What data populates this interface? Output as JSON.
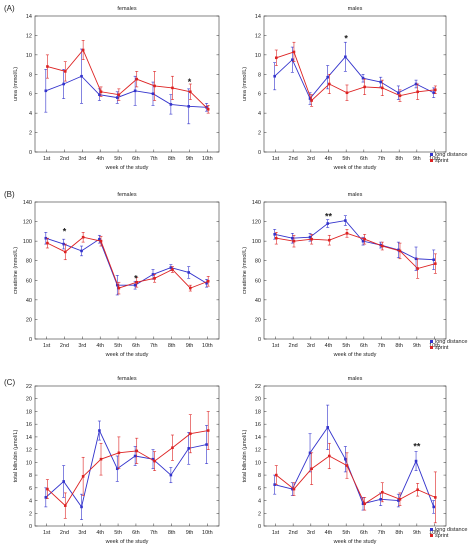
{
  "colors": {
    "long_distance": "#3333cc",
    "sprint": "#dd2222",
    "axis": "#333333"
  },
  "legend": {
    "long_distance": "long distance",
    "sprint": "sprint"
  },
  "chart_data": [
    {
      "panel": "(A)",
      "title": "females",
      "type": "line",
      "xlabel": "week of the study",
      "ylabel": "urea (mmol/L)",
      "ylim": [
        0,
        14
      ],
      "yticks": [
        0,
        2,
        4,
        6,
        8,
        10,
        12,
        14
      ],
      "categories": [
        "1st",
        "2nd",
        "3rd",
        "4th",
        "5th",
        "6th",
        "7th",
        "8th",
        "9th",
        "10th"
      ],
      "series": [
        {
          "name": "long distance",
          "values": [
            6.3,
            7.0,
            7.8,
            5.9,
            5.6,
            6.3,
            6.0,
            4.9,
            4.7,
            4.6
          ],
          "err": [
            2.2,
            1.5,
            2.8,
            0.6,
            0.6,
            1.5,
            1.2,
            1.0,
            1.8,
            0.4
          ]
        },
        {
          "name": "sprint",
          "values": [
            8.8,
            8.3,
            10.5,
            6.2,
            5.9,
            7.5,
            6.8,
            6.6,
            6.2,
            4.4
          ],
          "err": [
            1.2,
            1.0,
            1.0,
            0.5,
            0.6,
            0.8,
            1.5,
            1.2,
            0.8,
            0.4
          ]
        }
      ],
      "annotations": [
        {
          "label": "*",
          "x": "9th",
          "y": 7.2
        }
      ]
    },
    {
      "panel": "",
      "title": "males",
      "type": "line",
      "xlabel": "week of the study",
      "ylabel": "urea (mmol/L)",
      "ylim": [
        0,
        14
      ],
      "yticks": [
        0,
        2,
        4,
        6,
        8,
        10,
        12,
        14
      ],
      "categories": [
        "1st",
        "2nd",
        "3rd",
        "4th",
        "5th",
        "6th",
        "7th",
        "8th",
        "9th",
        "10th"
      ],
      "series": [
        {
          "name": "long distance",
          "values": [
            7.8,
            9.5,
            5.5,
            7.7,
            9.8,
            7.6,
            7.2,
            6.1,
            7.0,
            6.1
          ],
          "err": [
            1.4,
            1.3,
            0.6,
            1.2,
            1.5,
            0.4,
            0.5,
            0.7,
            0.4,
            0.5
          ]
        },
        {
          "name": "sprint",
          "values": [
            9.7,
            10.3,
            5.3,
            7.0,
            6.1,
            6.7,
            6.6,
            5.8,
            6.2,
            6.4
          ],
          "err": [
            0.8,
            1.0,
            0.6,
            1.0,
            0.8,
            0.8,
            0.8,
            0.6,
            0.8,
            0.4
          ]
        }
      ],
      "annotations": [
        {
          "label": "*",
          "x": "5th",
          "y": 11.7
        }
      ]
    },
    {
      "panel": "(B)",
      "title": "females",
      "type": "line",
      "xlabel": "week of the study",
      "ylabel": "creatinine (mmol/L)",
      "ylim": [
        0,
        140
      ],
      "yticks": [
        0,
        20,
        40,
        60,
        80,
        100,
        120,
        140
      ],
      "categories": [
        "1st",
        "2nd",
        "3rd",
        "4th",
        "5th",
        "6th",
        "7th",
        "8th",
        "9th",
        "10th"
      ],
      "series": [
        {
          "name": "long distance",
          "values": [
            103,
            97,
            90,
            102,
            55,
            55,
            66,
            73,
            68,
            57
          ],
          "err": [
            6,
            5,
            5,
            4,
            10,
            4,
            5,
            3,
            6,
            4
          ]
        },
        {
          "name": "sprint",
          "values": [
            98,
            89,
            104,
            100,
            52,
            58,
            62,
            71,
            52,
            59
          ],
          "err": [
            5,
            8,
            5,
            5,
            6,
            5,
            4,
            3,
            3,
            5
          ]
        }
      ],
      "annotations": [
        {
          "label": "*",
          "x": "2nd",
          "y": 110
        },
        {
          "label": "*",
          "x": "6th",
          "y": 62
        }
      ]
    },
    {
      "panel": "",
      "title": "males",
      "type": "line",
      "xlabel": "week of the study",
      "ylabel": "creatinine (mmol/L)",
      "ylim": [
        0,
        140
      ],
      "yticks": [
        0,
        20,
        40,
        60,
        80,
        100,
        120,
        140
      ],
      "categories": [
        "1st",
        "2nd",
        "3rd",
        "4th",
        "5th",
        "6th",
        "7th",
        "8th",
        "9th",
        "10th"
      ],
      "series": [
        {
          "name": "long distance",
          "values": [
            107,
            103,
            104,
            118,
            121,
            100,
            96,
            91,
            82,
            81
          ],
          "err": [
            5,
            5,
            4,
            4,
            5,
            4,
            3,
            8,
            12,
            10
          ]
        },
        {
          "name": "sprint",
          "values": [
            103,
            100,
            102,
            101,
            108,
            102,
            95,
            90,
            72,
            77
          ],
          "err": [
            6,
            6,
            5,
            5,
            4,
            5,
            4,
            8,
            10,
            10
          ]
        }
      ],
      "annotations": [
        {
          "label": "**",
          "x": "4th",
          "y": 125
        }
      ]
    },
    {
      "panel": "(C)",
      "title": "females",
      "type": "line",
      "xlabel": "week of the study",
      "ylabel": "total bilirubin (μmol/L)",
      "ylim": [
        0,
        22
      ],
      "yticks": [
        0,
        2,
        4,
        6,
        8,
        10,
        12,
        14,
        16,
        18,
        20,
        22
      ],
      "categories": [
        "1st",
        "2nd",
        "3rd",
        "4th",
        "5th",
        "6th",
        "7th",
        "8th",
        "9th",
        "10th"
      ],
      "series": [
        {
          "name": "long distance",
          "values": [
            4.5,
            7.0,
            3.0,
            15.0,
            9.0,
            11.0,
            10.5,
            8.0,
            12.2,
            12.8
          ],
          "err": [
            1.5,
            2.5,
            2.0,
            1.5,
            2.0,
            1.5,
            1.5,
            1.2,
            2.5,
            3.0
          ]
        },
        {
          "name": "sprint",
          "values": [
            5.8,
            3.2,
            7.8,
            10.5,
            11.5,
            11.8,
            10.2,
            12.3,
            14.5,
            15.0
          ],
          "err": [
            1.5,
            2.0,
            3.0,
            2.5,
            2.5,
            2.0,
            1.5,
            2.0,
            3.0,
            3.0
          ]
        }
      ],
      "annotations": []
    },
    {
      "panel": "",
      "title": "males",
      "type": "line",
      "xlabel": "week of the study",
      "ylabel": "total bilirubin (μmol/L)",
      "ylim": [
        0,
        22
      ],
      "yticks": [
        0,
        2,
        4,
        6,
        8,
        10,
        12,
        14,
        16,
        18,
        20,
        22
      ],
      "categories": [
        "1st",
        "2nd",
        "3rd",
        "4th",
        "5th",
        "6th",
        "7th",
        "8th",
        "9th",
        "10th"
      ],
      "series": [
        {
          "name": "long distance",
          "values": [
            6.5,
            5.8,
            11.5,
            15.5,
            10.5,
            3.5,
            4.2,
            4.0,
            10.2,
            3.0
          ],
          "err": [
            1.5,
            1.0,
            3.0,
            3.5,
            2.0,
            1.0,
            1.0,
            1.0,
            1.5,
            1.0
          ]
        },
        {
          "name": "sprint",
          "values": [
            8.0,
            5.8,
            9.0,
            11.0,
            9.5,
            3.5,
            5.3,
            4.2,
            5.7,
            4.5
          ],
          "err": [
            1.5,
            1.0,
            2.5,
            2.0,
            2.0,
            1.0,
            1.5,
            1.0,
            1.0,
            4.0
          ]
        }
      ],
      "annotations": [
        {
          "label": "**",
          "x": "9th",
          "y": 12.5
        }
      ]
    }
  ]
}
